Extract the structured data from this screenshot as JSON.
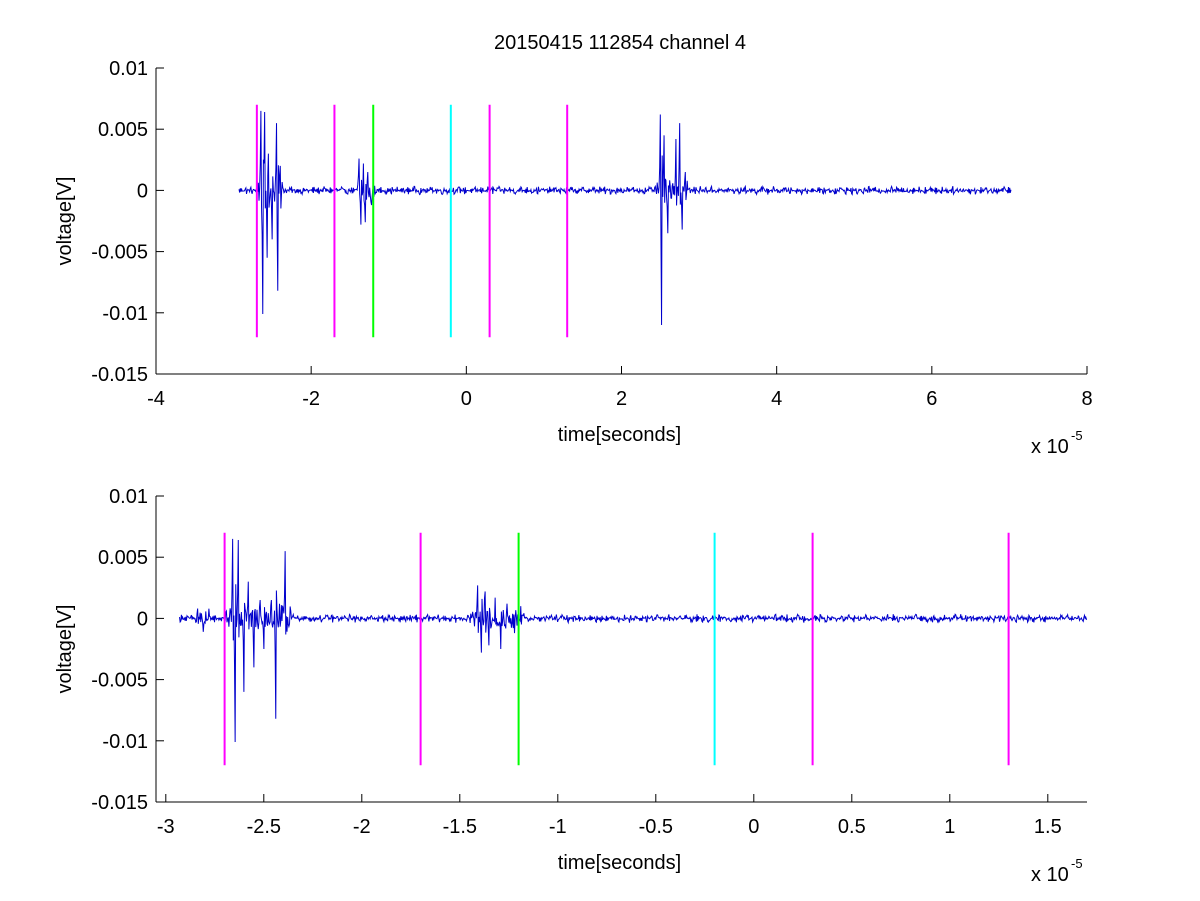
{
  "figure": {
    "title": "20150415 112854 channel 4"
  },
  "chart_data": [
    {
      "type": "line",
      "xlabel": "time[seconds]",
      "ylabel": "voltage[V]",
      "x_exponent_label": "x 10",
      "x_exponent": "-5",
      "xlim": [
        -4,
        8
      ],
      "ylim": [
        -0.015,
        0.01
      ],
      "xticks": [
        -4,
        -2,
        0,
        2,
        4,
        6,
        8
      ],
      "xtick_labels": [
        "-4",
        "-2",
        "0",
        "2",
        "4",
        "6",
        "8"
      ],
      "yticks": [
        0.01,
        0.005,
        0,
        -0.005,
        -0.01,
        -0.015
      ],
      "ytick_labels": [
        "0.01",
        "0.005",
        "0",
        "-0.005",
        "-0.01",
        "-0.015"
      ],
      "grid": false,
      "series": [
        {
          "color": "#0000cc",
          "x_range": [
            -2.93,
            7.02
          ],
          "baseline": 0,
          "noise_amplitude": 0.00035,
          "bursts": [
            {
              "x_start": -2.7,
              "x_end": -2.35,
              "peaks": [
                {
                  "x": -2.65,
                  "y": 0.0065
                },
                {
                  "x": -2.62,
                  "y": -0.0101
                },
                {
                  "x": -2.6,
                  "y": 0.0064
                },
                {
                  "x": -2.57,
                  "y": -0.0055
                },
                {
                  "x": -2.55,
                  "y": 0.003
                },
                {
                  "x": -2.5,
                  "y": -0.004
                },
                {
                  "x": -2.45,
                  "y": 0.0055
                },
                {
                  "x": -2.43,
                  "y": -0.0082
                },
                {
                  "x": -2.4,
                  "y": 0.002
                }
              ]
            },
            {
              "x_start": -1.42,
              "x_end": -1.18,
              "peaks": [
                {
                  "x": -1.38,
                  "y": 0.0026
                },
                {
                  "x": -1.36,
                  "y": -0.0028
                },
                {
                  "x": -1.33,
                  "y": 0.0022
                },
                {
                  "x": -1.3,
                  "y": -0.0026
                },
                {
                  "x": -1.27,
                  "y": 0.0015
                },
                {
                  "x": -1.22,
                  "y": -0.0012
                }
              ]
            },
            {
              "x_start": 2.45,
              "x_end": 2.85,
              "peaks": [
                {
                  "x": 2.5,
                  "y": 0.0062
                },
                {
                  "x": 2.52,
                  "y": -0.011
                },
                {
                  "x": 2.55,
                  "y": 0.0045
                },
                {
                  "x": 2.6,
                  "y": -0.0035
                },
                {
                  "x": 2.7,
                  "y": 0.0042
                },
                {
                  "x": 2.75,
                  "y": 0.0055
                },
                {
                  "x": 2.78,
                  "y": -0.0032
                },
                {
                  "x": 2.82,
                  "y": 0.0015
                }
              ]
            }
          ]
        }
      ],
      "markers": [
        {
          "x": -2.7,
          "color": "#ff00ff",
          "y_range": [
            -0.012,
            0.007
          ]
        },
        {
          "x": -1.7,
          "color": "#ff00ff",
          "y_range": [
            -0.012,
            0.007
          ]
        },
        {
          "x": -1.2,
          "color": "#00ff00",
          "y_range": [
            -0.012,
            0.007
          ]
        },
        {
          "x": -0.2,
          "color": "#00ffff",
          "y_range": [
            -0.012,
            0.007
          ]
        },
        {
          "x": 0.3,
          "color": "#ff00ff",
          "y_range": [
            -0.012,
            0.007
          ]
        },
        {
          "x": 1.3,
          "color": "#ff00ff",
          "y_range": [
            -0.012,
            0.007
          ]
        }
      ]
    },
    {
      "type": "line",
      "xlabel": "time[seconds]",
      "ylabel": "voltage[V]",
      "x_exponent_label": "x 10",
      "x_exponent": "-5",
      "xlim": [
        -3.05,
        1.7
      ],
      "ylim": [
        -0.015,
        0.01
      ],
      "xticks": [
        -3,
        -2.5,
        -2,
        -1.5,
        -1,
        -0.5,
        0,
        0.5,
        1,
        1.5
      ],
      "xtick_labels": [
        "-3",
        "-2.5",
        "-2",
        "-1.5",
        "-1",
        "-0.5",
        "0",
        "0.5",
        "1",
        "1.5"
      ],
      "yticks": [
        0.01,
        0.005,
        0,
        -0.005,
        -0.01,
        -0.015
      ],
      "ytick_labels": [
        "0.01",
        "0.005",
        "0",
        "-0.005",
        "-0.01",
        "-0.015"
      ],
      "grid": false,
      "series": [
        {
          "color": "#0000cc",
          "x_range": [
            -2.93,
            1.7
          ],
          "baseline": 0,
          "noise_amplitude": 0.00035,
          "bursts": [
            {
              "x_start": -2.85,
              "x_end": -2.78,
              "peaks": [
                {
                  "x": -2.84,
                  "y": -0.0003
                },
                {
                  "x": -2.81,
                  "y": -0.0011
                },
                {
                  "x": -2.79,
                  "y": -0.0004
                }
              ]
            },
            {
              "x_start": -2.7,
              "x_end": -2.36,
              "peaks": [
                {
                  "x": -2.66,
                  "y": 0.0065
                },
                {
                  "x": -2.645,
                  "y": -0.0101
                },
                {
                  "x": -2.63,
                  "y": 0.0064
                },
                {
                  "x": -2.6,
                  "y": -0.006
                },
                {
                  "x": -2.58,
                  "y": 0.003
                },
                {
                  "x": -2.55,
                  "y": -0.004
                },
                {
                  "x": -2.52,
                  "y": 0.0015
                },
                {
                  "x": -2.5,
                  "y": -0.0025
                },
                {
                  "x": -2.46,
                  "y": 0.0015
                },
                {
                  "x": -2.44,
                  "y": -0.0082
                },
                {
                  "x": -2.42,
                  "y": 0.0012
                },
                {
                  "x": -2.39,
                  "y": 0.0055
                },
                {
                  "x": -2.37,
                  "y": -0.0005
                }
              ]
            },
            {
              "x_start": -1.45,
              "x_end": -1.17,
              "peaks": [
                {
                  "x": -1.41,
                  "y": 0.0027
                },
                {
                  "x": -1.39,
                  "y": -0.0028
                },
                {
                  "x": -1.37,
                  "y": 0.0022
                },
                {
                  "x": -1.35,
                  "y": -0.0022
                },
                {
                  "x": -1.32,
                  "y": 0.0017
                },
                {
                  "x": -1.29,
                  "y": -0.0025
                },
                {
                  "x": -1.26,
                  "y": 0.0012
                },
                {
                  "x": -1.22,
                  "y": -0.0012
                },
                {
                  "x": -1.19,
                  "y": 0.001
                }
              ]
            }
          ]
        }
      ],
      "markers": [
        {
          "x": -2.7,
          "color": "#ff00ff",
          "y_range": [
            -0.012,
            0.007
          ]
        },
        {
          "x": -1.7,
          "color": "#ff00ff",
          "y_range": [
            -0.012,
            0.007
          ]
        },
        {
          "x": -1.2,
          "color": "#00ff00",
          "y_range": [
            -0.012,
            0.007
          ]
        },
        {
          "x": -0.2,
          "color": "#00ffff",
          "y_range": [
            -0.012,
            0.007
          ]
        },
        {
          "x": 0.3,
          "color": "#ff00ff",
          "y_range": [
            -0.012,
            0.007
          ]
        },
        {
          "x": 1.3,
          "color": "#ff00ff",
          "y_range": [
            -0.012,
            0.007
          ]
        }
      ]
    }
  ]
}
